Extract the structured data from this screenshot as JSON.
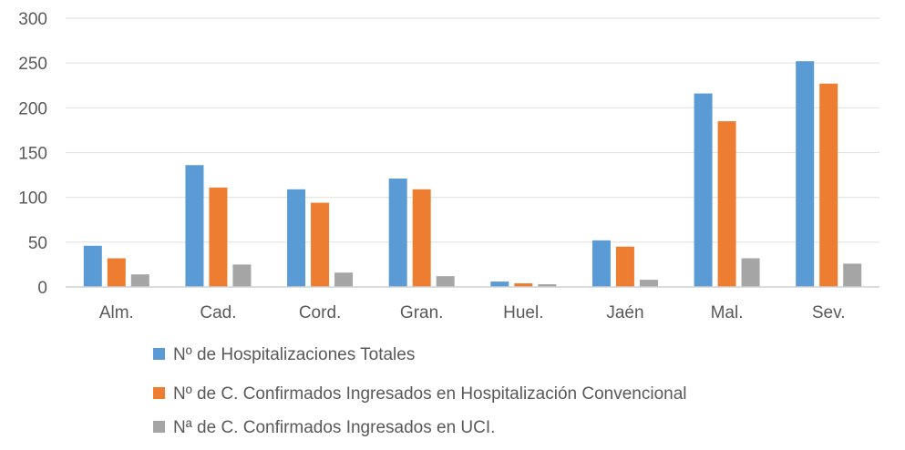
{
  "chart_data": {
    "type": "bar",
    "title": "",
    "xlabel": "",
    "ylabel": "",
    "ylim": [
      0,
      300
    ],
    "yticks": [
      0,
      50,
      100,
      150,
      200,
      250,
      300
    ],
    "grid": true,
    "legend_position": "bottom",
    "categories": [
      "Alm.",
      "Cad.",
      "Cord.",
      "Gran.",
      "Huel.",
      "Jaén",
      "Mal.",
      "Sev."
    ],
    "series": [
      {
        "name": "Nº de Hospitalizaciones Totales",
        "color": "#5b9bd5",
        "values": [
          46,
          136,
          109,
          121,
          6,
          52,
          216,
          252
        ]
      },
      {
        "name": "Nº de C. Confirmados Ingresados en Hospitalización Convencional",
        "color": "#ed7d31",
        "values": [
          32,
          111,
          94,
          109,
          4,
          45,
          185,
          227
        ]
      },
      {
        "name": "Nª de C. Confirmados Ingresados en UCI.",
        "color": "#a5a5a5",
        "values": [
          14,
          25,
          16,
          12,
          3,
          8,
          32,
          26
        ]
      }
    ]
  }
}
